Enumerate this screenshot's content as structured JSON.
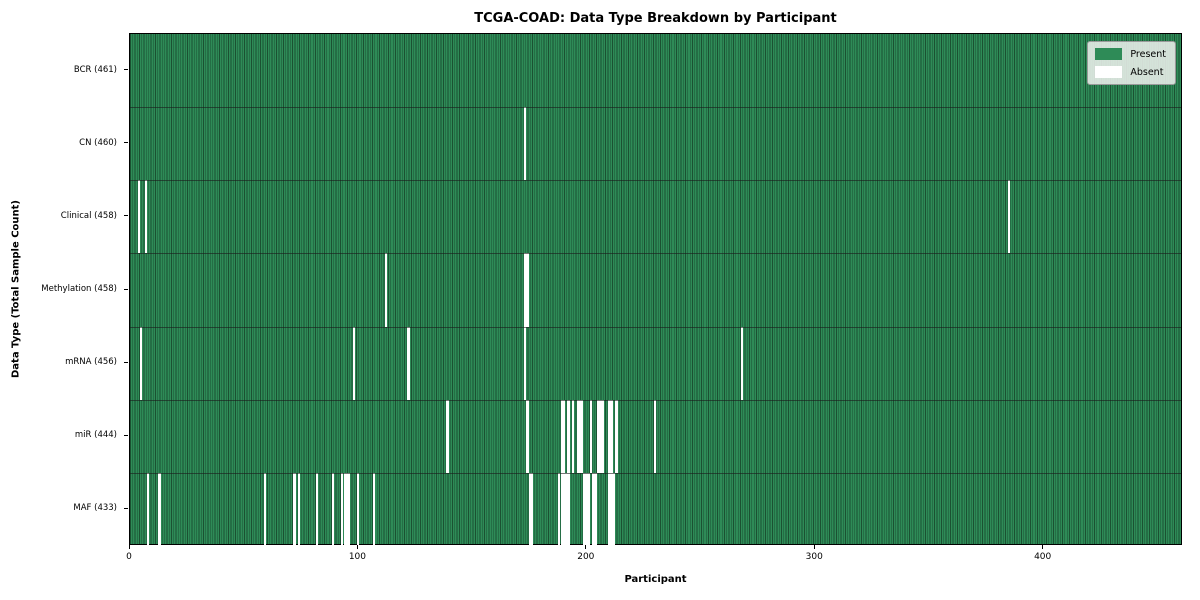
{
  "title": "TCGA-COAD: Data Type Breakdown by Participant",
  "chart_data": {
    "type": "heatmap",
    "title": "TCGA-COAD: Data Type Breakdown by Participant",
    "xlabel": "Participant",
    "ylabel": "Data Type (Total Sample Count)",
    "x_ticks": [
      0,
      100,
      200,
      300,
      400
    ],
    "x_range": [
      0,
      461
    ],
    "total_participants": 461,
    "grid": false,
    "legend": {
      "position": "upper right",
      "present_label": "Present",
      "absent_label": "Absent"
    },
    "colors": {
      "present": "#2e8b57",
      "absent": "#ffffff",
      "cell_edge": "#1e5038",
      "row_separator": "#1a1a1a",
      "plot_border": "#000000",
      "legend_bg": "#eceeec",
      "legend_border": "#9a9a9a"
    },
    "rows": [
      {
        "label": "BCR (461)",
        "data_type": "BCR",
        "total": 461,
        "absent": []
      },
      {
        "label": "CN (460)",
        "data_type": "CN",
        "total": 460,
        "absent": [
          173
        ]
      },
      {
        "label": "Clinical (458)",
        "data_type": "Clinical",
        "total": 458,
        "absent": [
          4,
          7,
          385
        ]
      },
      {
        "label": "Methylation (458)",
        "data_type": "Methylation",
        "total": 458,
        "absent": [
          112,
          173,
          174
        ]
      },
      {
        "label": "mRNA (456)",
        "data_type": "mRNA",
        "total": 456,
        "absent": [
          5,
          98,
          122,
          173,
          268
        ]
      },
      {
        "label": "miR (444)",
        "data_type": "miR",
        "total": 444,
        "absent": [
          139,
          174,
          189,
          190,
          192,
          194,
          196,
          197,
          198,
          202,
          205,
          206,
          207,
          210,
          211,
          213,
          230
        ]
      },
      {
        "label": "MAF (433)",
        "data_type": "MAF",
        "total": 433,
        "absent": [
          8,
          13,
          59,
          72,
          74,
          82,
          89,
          93,
          94,
          95,
          96,
          100,
          107,
          175,
          176,
          188,
          189,
          190,
          191,
          192,
          199,
          200,
          201,
          203,
          204,
          210,
          211,
          212
        ]
      }
    ]
  }
}
